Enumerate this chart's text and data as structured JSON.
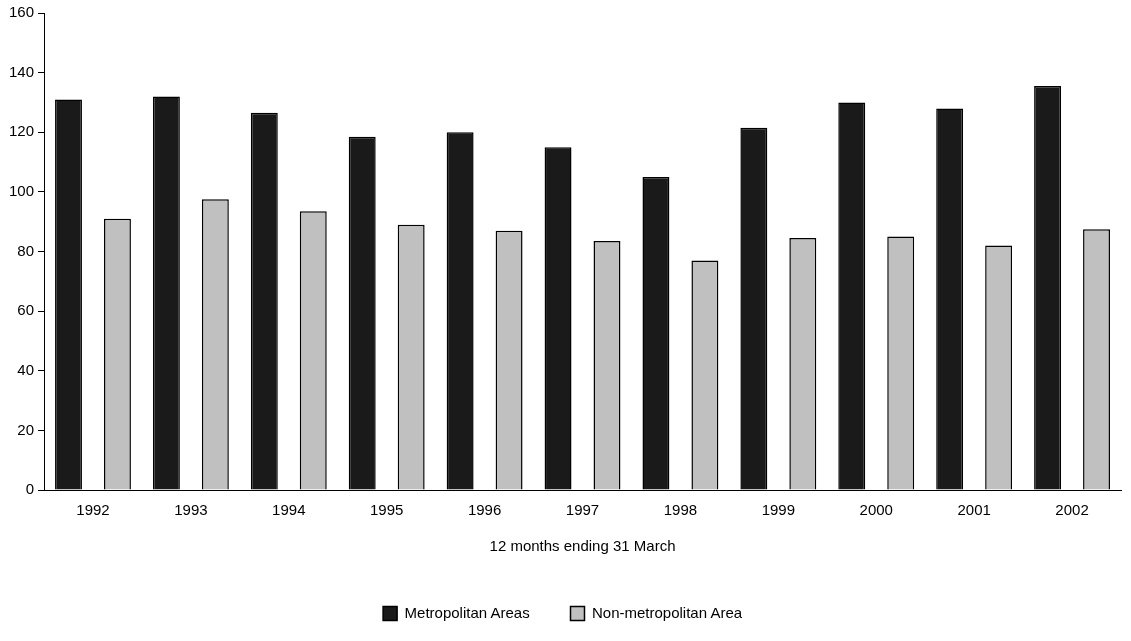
{
  "chart_data": {
    "type": "bar",
    "xlabel": "12 months ending 31 March",
    "categories": [
      "1992",
      "1993",
      "1994",
      "1995",
      "1996",
      "1997",
      "1998",
      "1999",
      "2000",
      "2001",
      "2002"
    ],
    "series": [
      {
        "name": "Metropolitan Areas",
        "color": "#1a1a1a",
        "values": [
          131,
          132,
          126.5,
          118.5,
          120,
          115,
          105,
          121.5,
          130,
          128,
          135.5
        ]
      },
      {
        "name": "Non-metropolitan Area",
        "color": "#c0c0c0",
        "values": [
          91,
          97.5,
          93.5,
          89,
          87,
          83.5,
          77,
          84.5,
          85,
          82,
          87.5
        ]
      }
    ],
    "ylim": [
      0,
      160
    ],
    "yticks": [
      0,
      20,
      40,
      60,
      80,
      100,
      120,
      140,
      160
    ],
    "grid": false,
    "legend": "bottom"
  }
}
